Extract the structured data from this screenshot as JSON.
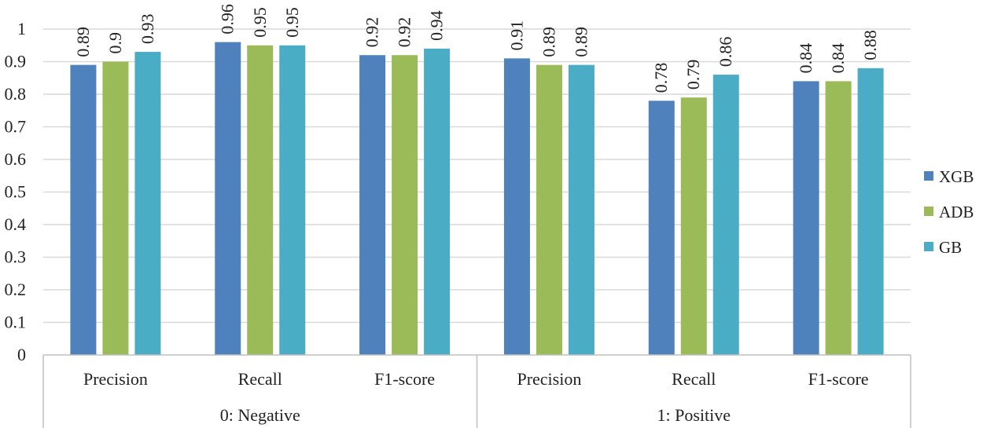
{
  "chart_data": {
    "type": "bar",
    "title": "",
    "xlabel": "",
    "ylabel": "",
    "ylim": [
      0,
      1
    ],
    "yticks": [
      "0",
      "0.1",
      "0.2",
      "0.3",
      "0.4",
      "0.5",
      "0.6",
      "0.7",
      "0.8",
      "0.9",
      "1"
    ],
    "grid": true,
    "legend_position": "right",
    "groups": [
      {
        "label": "0: Negative",
        "categories": [
          "Precision",
          "Recall",
          "F1-score"
        ]
      },
      {
        "label": "1: Positive",
        "categories": [
          "Precision",
          "Recall",
          "F1-score"
        ]
      }
    ],
    "categories": [
      "Precision",
      "Recall",
      "F1-score",
      "Precision",
      "Recall",
      "F1-score"
    ],
    "series": [
      {
        "name": "XGB",
        "color": "#4f81bd",
        "values": [
          0.89,
          0.96,
          0.92,
          0.91,
          0.78,
          0.84
        ],
        "labels": [
          "0.89",
          "0.96",
          "0.92",
          "0.91",
          "0.78",
          "0.84"
        ]
      },
      {
        "name": "ADB",
        "color": "#9bbb59",
        "values": [
          0.9,
          0.95,
          0.92,
          0.89,
          0.79,
          0.84
        ],
        "labels": [
          "0.9",
          "0.95",
          "0.92",
          "0.89",
          "0.79",
          "0.84"
        ]
      },
      {
        "name": "GB",
        "color": "#4bacc6",
        "values": [
          0.93,
          0.95,
          0.94,
          0.89,
          0.86,
          0.88
        ],
        "labels": [
          "0.93",
          "0.95",
          "0.94",
          "0.89",
          "0.86",
          "0.88"
        ]
      }
    ]
  }
}
